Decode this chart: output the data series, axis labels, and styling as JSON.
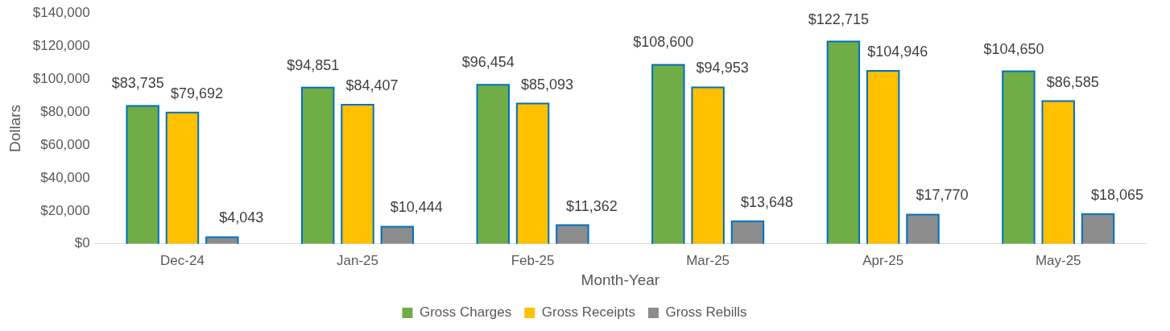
{
  "chart_data": {
    "type": "bar",
    "xlabel": "Month-Year",
    "ylabel": "Dollars",
    "categories": [
      "Dec-24",
      "Jan-25",
      "Feb-25",
      "Mar-25",
      "Apr-25",
      "May-25"
    ],
    "series": [
      {
        "name": "Gross Charges",
        "color": "#70ad47",
        "values": [
          83735,
          94851,
          96454,
          108600,
          122715,
          104650
        ],
        "value_labels": [
          "$83,735",
          "$94,851",
          "$96,454",
          "$108,600",
          "$122,715",
          "$104,650"
        ]
      },
      {
        "name": "Gross Receipts",
        "color": "#ffc000",
        "values": [
          79692,
          84407,
          85093,
          94953,
          104946,
          86585
        ],
        "value_labels": [
          "$79,692",
          "$84,407",
          "$85,093",
          "$94,953",
          "$104,946",
          "$86,585"
        ]
      },
      {
        "name": "Gross Rebills",
        "color": "#8c8c8c",
        "values": [
          4043,
          10444,
          11362,
          13648,
          17770,
          18065
        ],
        "value_labels": [
          "$4,043",
          "$10,444",
          "$11,362",
          "$13,648",
          "$17,770",
          "$18,065"
        ]
      }
    ],
    "ylim": [
      0,
      140000
    ],
    "yticks": [
      {
        "value": 0,
        "label": "$0"
      },
      {
        "value": 20000,
        "label": "$20,000"
      },
      {
        "value": 40000,
        "label": "$40,000"
      },
      {
        "value": 60000,
        "label": "$60,000"
      },
      {
        "value": 80000,
        "label": "$80,000"
      },
      {
        "value": 100000,
        "label": "$100,000"
      },
      {
        "value": 120000,
        "label": "$120,000"
      },
      {
        "value": 140000,
        "label": "$140,000"
      }
    ],
    "grid": false,
    "legend": "bottom"
  }
}
